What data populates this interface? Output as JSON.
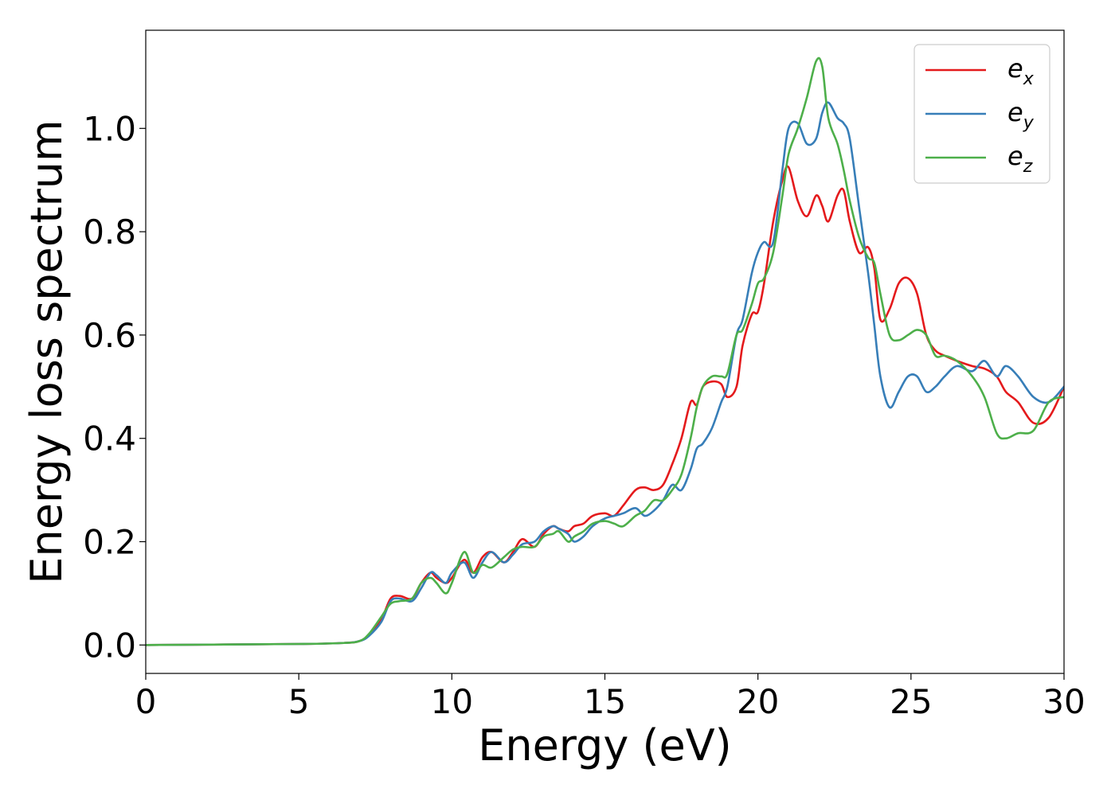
{
  "chart_data": {
    "type": "line",
    "title": "",
    "xlabel": "Energy (eV)",
    "ylabel": "Energy loss spectrum",
    "xlim": [
      0,
      30
    ],
    "ylim": [
      -0.055,
      1.19
    ],
    "xticks": [
      0,
      5,
      10,
      15,
      20,
      25,
      30
    ],
    "xtick_labels": [
      "0",
      "5",
      "10",
      "15",
      "20",
      "25",
      "30"
    ],
    "yticks": [
      0.0,
      0.2,
      0.4,
      0.6,
      0.8,
      1.0
    ],
    "ytick_labels": [
      "0.0",
      "0.2",
      "0.4",
      "0.6",
      "0.8",
      "1.0"
    ],
    "grid": false,
    "legend_position": "top-right",
    "series": [
      {
        "name": "e_x",
        "label_base": "e",
        "label_sub": "x",
        "color": "#e41a1c",
        "x": [
          0,
          5,
          6.5,
          7,
          7.3,
          7.7,
          8,
          8.3,
          8.7,
          9,
          9.3,
          9.5,
          9.8,
          10,
          10.4,
          10.7,
          11,
          11.3,
          11.7,
          12,
          12.3,
          12.7,
          13,
          13.3,
          13.5,
          13.8,
          14,
          14.3,
          14.6,
          15,
          15.3,
          15.6,
          16,
          16.3,
          16.6,
          16.9,
          17.2,
          17.5,
          17.8,
          18,
          18.2,
          18.5,
          18.8,
          19,
          19.3,
          19.5,
          19.8,
          20,
          20.2,
          20.5,
          20.8,
          21,
          21.3,
          21.6,
          21.9,
          22.1,
          22.3,
          22.6,
          22.8,
          23,
          23.3,
          23.6,
          23.8,
          24,
          24.3,
          24.6,
          24.9,
          25.2,
          25.5,
          25.8,
          26.1,
          26.5,
          27,
          27.4,
          27.8,
          28.1,
          28.5,
          29,
          29.5,
          30
        ],
        "y": [
          0.0,
          0.002,
          0.004,
          0.008,
          0.02,
          0.05,
          0.09,
          0.095,
          0.09,
          0.12,
          0.14,
          0.13,
          0.12,
          0.13,
          0.165,
          0.14,
          0.17,
          0.18,
          0.16,
          0.18,
          0.205,
          0.19,
          0.215,
          0.23,
          0.225,
          0.22,
          0.23,
          0.235,
          0.25,
          0.255,
          0.25,
          0.27,
          0.3,
          0.305,
          0.3,
          0.31,
          0.35,
          0.4,
          0.47,
          0.465,
          0.5,
          0.51,
          0.505,
          0.48,
          0.5,
          0.58,
          0.64,
          0.645,
          0.7,
          0.82,
          0.9,
          0.925,
          0.86,
          0.83,
          0.87,
          0.85,
          0.82,
          0.87,
          0.88,
          0.82,
          0.76,
          0.77,
          0.73,
          0.63,
          0.65,
          0.7,
          0.71,
          0.68,
          0.6,
          0.57,
          0.56,
          0.55,
          0.54,
          0.535,
          0.52,
          0.49,
          0.47,
          0.43,
          0.44,
          0.5
        ]
      },
      {
        "name": "e_y",
        "label_base": "e",
        "label_sub": "y",
        "color": "#377eb8",
        "x": [
          0,
          5,
          6.5,
          7,
          7.3,
          7.7,
          8,
          8.3,
          8.7,
          9,
          9.3,
          9.5,
          9.8,
          10,
          10.4,
          10.7,
          11,
          11.3,
          11.7,
          12,
          12.3,
          12.7,
          13,
          13.3,
          13.5,
          13.8,
          14,
          14.3,
          14.6,
          15,
          15.3,
          15.6,
          16,
          16.3,
          16.6,
          16.9,
          17.2,
          17.5,
          17.8,
          18,
          18.2,
          18.5,
          18.8,
          19,
          19.3,
          19.5,
          19.8,
          20,
          20.2,
          20.5,
          20.8,
          21,
          21.3,
          21.6,
          21.9,
          22.1,
          22.3,
          22.6,
          22.8,
          23,
          23.3,
          23.6,
          23.8,
          24,
          24.3,
          24.6,
          24.9,
          25.2,
          25.5,
          25.8,
          26.1,
          26.5,
          27,
          27.4,
          27.8,
          28.1,
          28.5,
          29,
          29.5,
          30
        ],
        "y": [
          0.0,
          0.002,
          0.004,
          0.008,
          0.018,
          0.045,
          0.085,
          0.09,
          0.085,
          0.11,
          0.14,
          0.135,
          0.12,
          0.14,
          0.16,
          0.13,
          0.16,
          0.18,
          0.16,
          0.175,
          0.195,
          0.2,
          0.22,
          0.23,
          0.225,
          0.215,
          0.2,
          0.21,
          0.23,
          0.245,
          0.25,
          0.255,
          0.265,
          0.25,
          0.26,
          0.28,
          0.31,
          0.3,
          0.34,
          0.38,
          0.39,
          0.42,
          0.47,
          0.5,
          0.6,
          0.63,
          0.72,
          0.76,
          0.78,
          0.78,
          0.92,
          1.0,
          1.01,
          0.97,
          0.98,
          1.03,
          1.05,
          1.02,
          1.01,
          0.98,
          0.85,
          0.72,
          0.62,
          0.52,
          0.46,
          0.49,
          0.52,
          0.52,
          0.49,
          0.5,
          0.52,
          0.54,
          0.53,
          0.55,
          0.52,
          0.54,
          0.52,
          0.48,
          0.47,
          0.5
        ]
      },
      {
        "name": "e_z",
        "label_base": "e",
        "label_sub": "z",
        "color": "#4daf4a",
        "x": [
          0,
          5,
          6.5,
          7,
          7.3,
          7.7,
          8,
          8.3,
          8.7,
          9,
          9.3,
          9.5,
          9.8,
          10,
          10.4,
          10.7,
          11,
          11.3,
          11.7,
          12,
          12.3,
          12.7,
          13,
          13.3,
          13.5,
          13.8,
          14,
          14.3,
          14.6,
          15,
          15.3,
          15.6,
          16,
          16.3,
          16.6,
          16.9,
          17.2,
          17.5,
          17.8,
          18,
          18.2,
          18.5,
          18.8,
          19,
          19.3,
          19.5,
          19.8,
          20,
          20.2,
          20.5,
          20.8,
          21,
          21.3,
          21.6,
          21.9,
          22.1,
          22.3,
          22.6,
          22.8,
          23,
          23.3,
          23.6,
          23.8,
          24,
          24.3,
          24.6,
          24.9,
          25.2,
          25.5,
          25.8,
          26.1,
          26.5,
          27,
          27.4,
          27.8,
          28.1,
          28.5,
          29,
          29.5,
          30
        ],
        "y": [
          0.0,
          0.002,
          0.004,
          0.008,
          0.022,
          0.055,
          0.08,
          0.085,
          0.09,
          0.12,
          0.13,
          0.12,
          0.1,
          0.12,
          0.18,
          0.14,
          0.155,
          0.15,
          0.17,
          0.185,
          0.19,
          0.19,
          0.21,
          0.215,
          0.22,
          0.2,
          0.21,
          0.22,
          0.235,
          0.24,
          0.235,
          0.23,
          0.25,
          0.26,
          0.28,
          0.28,
          0.3,
          0.33,
          0.4,
          0.46,
          0.5,
          0.52,
          0.52,
          0.525,
          0.6,
          0.61,
          0.66,
          0.7,
          0.71,
          0.76,
          0.87,
          0.95,
          1.0,
          1.06,
          1.13,
          1.12,
          1.02,
          0.97,
          0.92,
          0.86,
          0.79,
          0.75,
          0.74,
          0.68,
          0.6,
          0.59,
          0.6,
          0.61,
          0.6,
          0.56,
          0.56,
          0.55,
          0.52,
          0.48,
          0.41,
          0.4,
          0.41,
          0.415,
          0.47,
          0.48
        ]
      }
    ]
  }
}
